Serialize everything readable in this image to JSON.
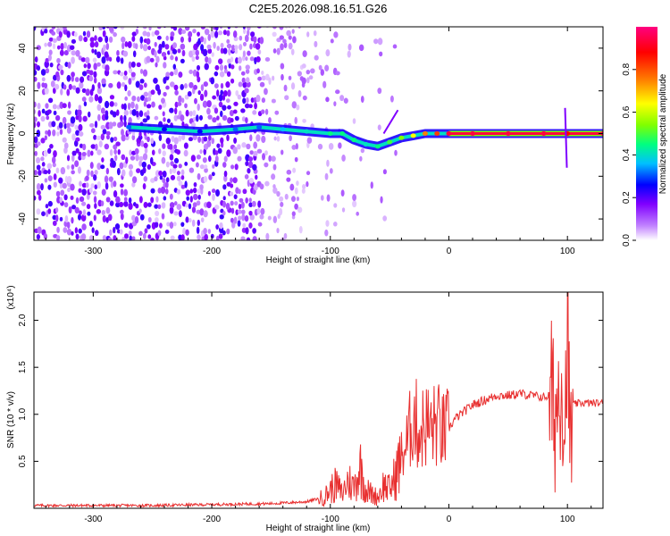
{
  "title": "C2E5.2026.098.16.51.G26",
  "colors": {
    "axis": "#000000",
    "snr_line": "#e83030",
    "spectrogram_faint": "#d9c3ef",
    "spectrogram_strong": "#7a16e6"
  },
  "chart_data": [
    {
      "type": "heatmap",
      "name": "spectrogram",
      "xlabel": "Height of straight line (km)",
      "ylabel": "Frequency (Hz)",
      "xlim": [
        -350,
        130
      ],
      "ylim": [
        -50,
        50
      ],
      "x_ticks": [
        -300,
        -200,
        -100,
        0,
        100
      ],
      "x_tick_labels": [
        "-300",
        "-200",
        "-100",
        "0",
        "100"
      ],
      "y_ticks": [
        -40,
        -20,
        0,
        20,
        40
      ],
      "y_tick_labels": [
        "-40",
        "-20",
        "0",
        "20",
        "40"
      ],
      "colorbar": {
        "label": "Normalized spectral amplitude",
        "range": [
          0,
          1
        ],
        "ticks": [
          0.0,
          0.2,
          0.4,
          0.6,
          0.8
        ],
        "tick_labels": [
          "0.0",
          "0.2",
          "0.4",
          "0.6",
          "0.8"
        ],
        "colormap": [
          "#ffffff",
          "#c080ff",
          "#8000ff",
          "#0000ff",
          "#00c0ff",
          "#00ff80",
          "#80ff00",
          "#ffff00",
          "#ff8000",
          "#ff0000",
          "#ff0080"
        ]
      },
      "ridge": {
        "x": [
          -270,
          -240,
          -210,
          -180,
          -160,
          -140,
          -120,
          -100,
          -90,
          -80,
          -70,
          -60,
          -50,
          -40,
          -30,
          -20,
          -10,
          0,
          20,
          50,
          80,
          100,
          130
        ],
        "y": [
          3,
          2,
          1,
          2,
          3,
          2,
          1,
          0,
          0,
          -3,
          -5,
          -6,
          -4,
          -2,
          -1,
          0,
          0,
          0,
          0,
          0,
          0,
          0,
          0
        ],
        "amplitude": [
          0.35,
          0.3,
          0.3,
          0.35,
          0.35,
          0.4,
          0.45,
          0.5,
          0.5,
          0.5,
          0.45,
          0.5,
          0.55,
          0.6,
          0.7,
          0.8,
          0.85,
          0.95,
          0.95,
          0.95,
          0.95,
          0.9,
          0.95
        ]
      }
    },
    {
      "type": "line",
      "name": "snr",
      "xlabel": "Height of straight line (km)",
      "ylabel": "SNR (10 * v/v)",
      "scale_label": "(x10⁴)",
      "xlim": [
        -350,
        130
      ],
      "ylim": [
        0,
        2.3
      ],
      "x_ticks": [
        -300,
        -200,
        -100,
        0,
        100
      ],
      "x_tick_labels": [
        "-300",
        "-200",
        "-100",
        "0",
        "100"
      ],
      "y_ticks": [
        0.5,
        1.0,
        1.5,
        2.0
      ],
      "y_tick_labels": [
        "0.5",
        "1.0",
        "1.5",
        "2.0"
      ],
      "series": [
        {
          "name": "SNR",
          "x": [
            -350,
            -300,
            -250,
            -200,
            -150,
            -120,
            -105,
            -100,
            -95,
            -90,
            -85,
            -80,
            -75,
            -70,
            -65,
            -60,
            -55,
            -50,
            -45,
            -40,
            -35,
            -30,
            -25,
            -20,
            -15,
            -10,
            -5,
            0,
            5,
            10,
            20,
            30,
            40,
            50,
            60,
            70,
            80,
            85,
            90,
            95,
            98,
            100,
            102,
            105,
            110,
            120,
            130
          ],
          "y": [
            0.03,
            0.03,
            0.03,
            0.04,
            0.05,
            0.07,
            0.12,
            0.2,
            0.25,
            0.15,
            0.3,
            0.22,
            0.45,
            0.2,
            0.15,
            0.12,
            0.25,
            0.2,
            0.35,
            0.55,
            0.7,
            1.0,
            0.8,
            0.9,
            0.85,
            0.9,
            0.8,
            0.85,
            0.95,
            1.0,
            1.1,
            1.15,
            1.2,
            1.2,
            1.22,
            1.2,
            1.18,
            1.2,
            1.0,
            1.5,
            0.8,
            2.2,
            0.6,
            1.1,
            1.12,
            1.12,
            1.12
          ]
        }
      ]
    }
  ]
}
